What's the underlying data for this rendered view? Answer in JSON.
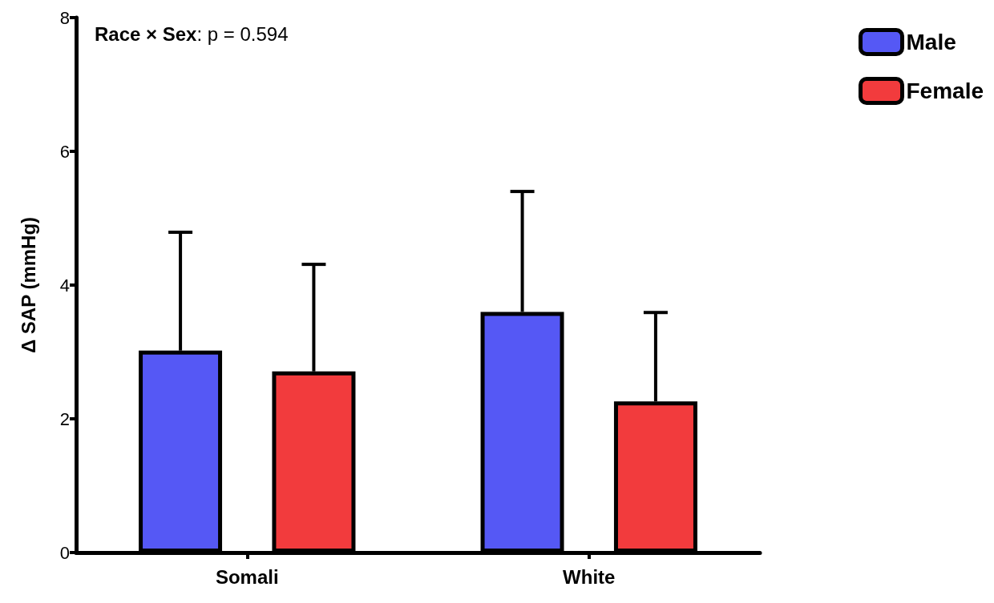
{
  "chart_data": {
    "type": "bar",
    "ylabel": "Δ SAP (mmHg)",
    "categories": [
      "Somali",
      "White"
    ],
    "series": [
      {
        "name": "Male",
        "color": "#5558f5",
        "values": [
          3.02,
          3.6
        ],
        "errors": [
          [
            3.02,
            4.79
          ],
          [
            3.6,
            5.4
          ]
        ]
      },
      {
        "name": "Female",
        "color": "#f23b3d",
        "values": [
          2.71,
          2.26
        ],
        "errors": [
          [
            2.71,
            4.31
          ],
          [
            2.26,
            3.59
          ]
        ]
      }
    ],
    "ylim": [
      0,
      8
    ],
    "yticks": [
      0,
      2,
      4,
      6,
      8
    ],
    "grid": false,
    "legend": "top right",
    "annotations": [
      "Race × Sex: p = 0.594"
    ]
  }
}
